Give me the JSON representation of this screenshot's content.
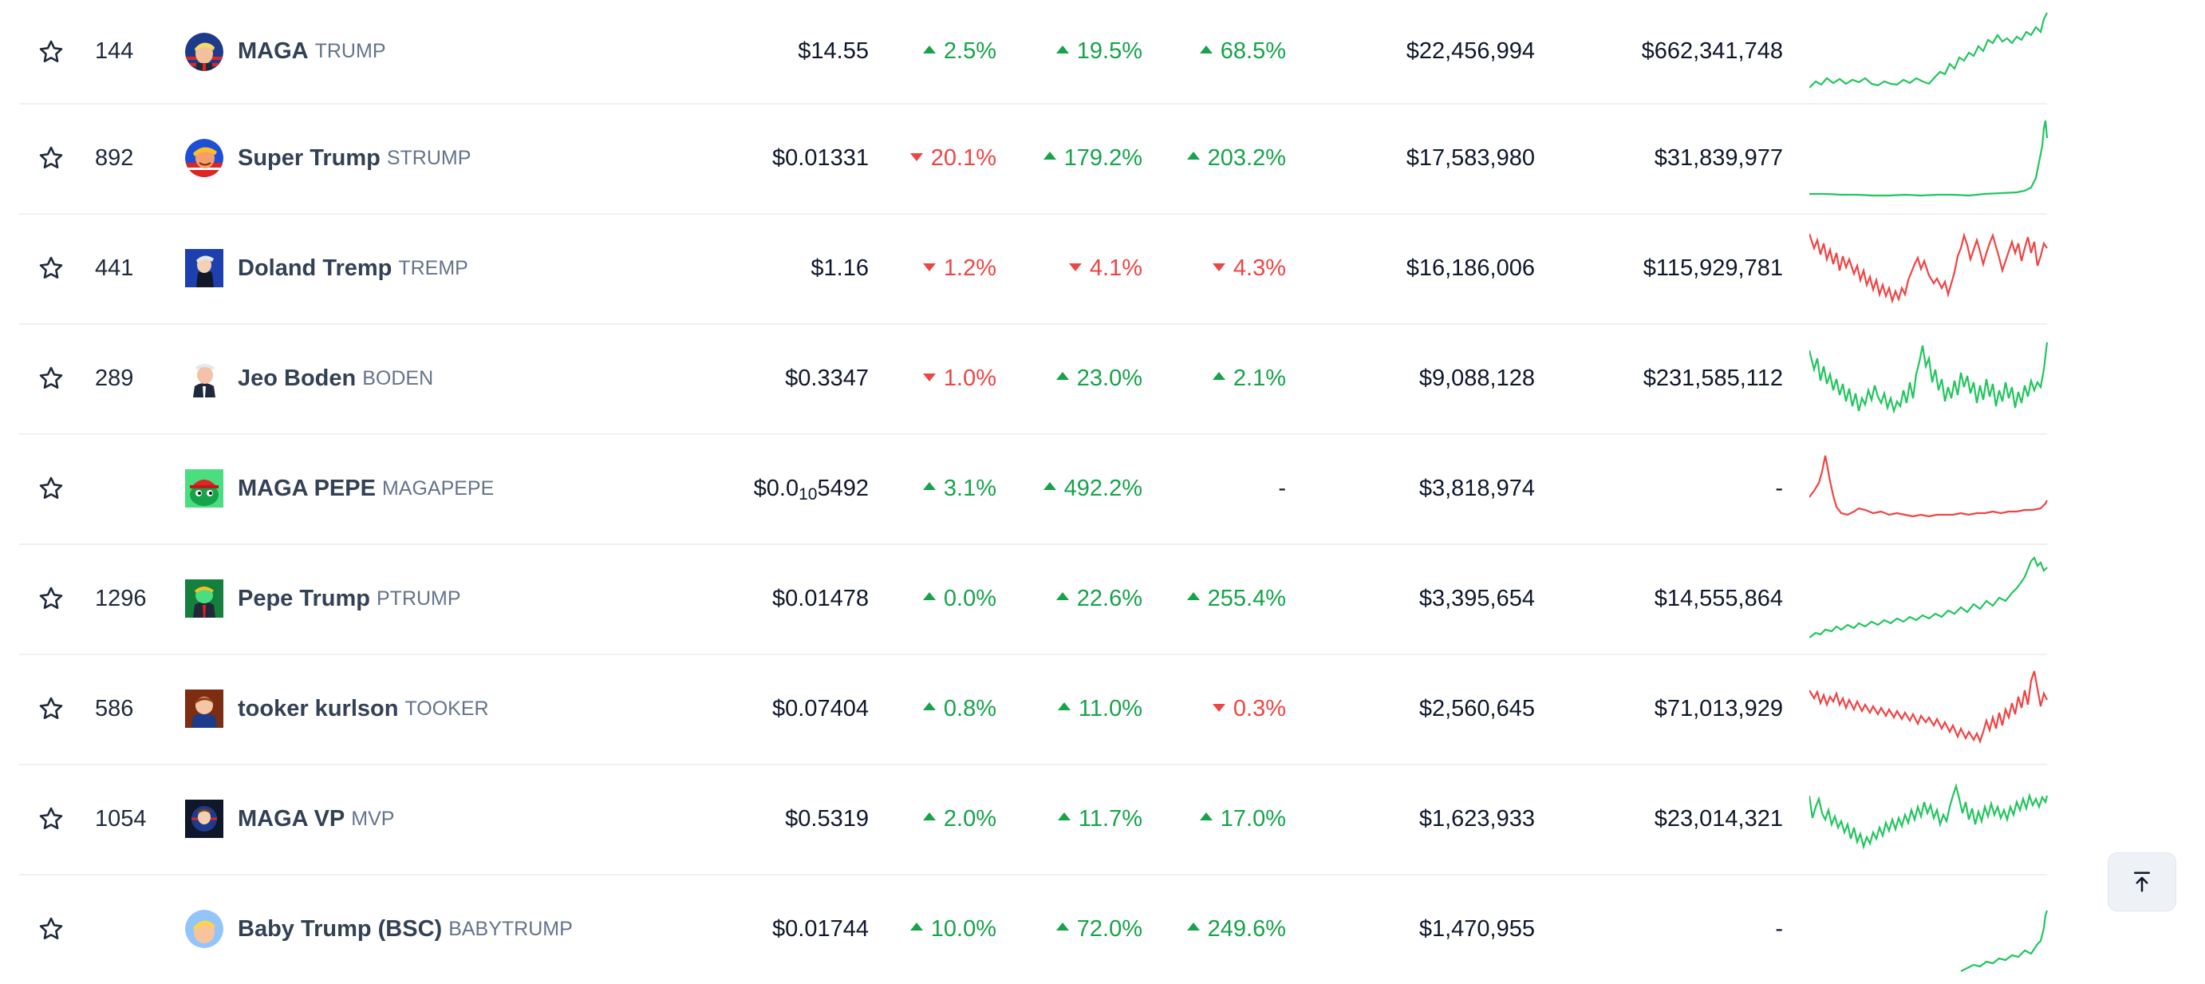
{
  "colors": {
    "up": "#16a34a",
    "down": "#ef4444"
  },
  "rows": [
    {
      "rank": "144",
      "name": "MAGA",
      "symbol": "TRUMP",
      "price": "$14.55",
      "h1": "2.5%",
      "h1_dir": "up",
      "h24": "19.5%",
      "h24_dir": "up",
      "d7": "68.5%",
      "d7_dir": "up",
      "volume": "$22,456,994",
      "market_cap": "$662,341,748",
      "trend": "up",
      "icon": "trump-flag-avatar-icon"
    },
    {
      "rank": "892",
      "name": "Super Trump",
      "symbol": "STRUMP",
      "price": "$0.01331",
      "h1": "20.1%",
      "h1_dir": "down",
      "h24": "179.2%",
      "h24_dir": "up",
      "d7": "203.2%",
      "d7_dir": "up",
      "volume": "$17,583,980",
      "market_cap": "$31,839,977",
      "trend": "up",
      "icon": "super-trump-avatar-icon"
    },
    {
      "rank": "441",
      "name": "Doland Tremp",
      "symbol": "TREMP",
      "price": "$1.16",
      "h1": "1.2%",
      "h1_dir": "down",
      "h24": "4.1%",
      "h24_dir": "down",
      "d7": "4.3%",
      "d7_dir": "down",
      "volume": "$16,186,006",
      "market_cap": "$115,929,781",
      "trend": "down",
      "icon": "doland-tremp-avatar-icon"
    },
    {
      "rank": "289",
      "name": "Jeo Boden",
      "symbol": "BODEN",
      "price": "$0.3347",
      "h1": "1.0%",
      "h1_dir": "down",
      "h24": "23.0%",
      "h24_dir": "up",
      "d7": "2.1%",
      "d7_dir": "up",
      "volume": "$9,088,128",
      "market_cap": "$231,585,112",
      "trend": "up",
      "icon": "jeo-boden-avatar-icon"
    },
    {
      "rank": "",
      "name": "MAGA PEPE",
      "symbol": "MAGAPEPE",
      "price_prefix": "$0.0",
      "price_sub": "10",
      "price_suffix": "5492",
      "h1": "3.1%",
      "h1_dir": "up",
      "h24": "492.2%",
      "h24_dir": "up",
      "d7": "-",
      "d7_dir": "none",
      "volume": "$3,818,974",
      "market_cap": "-",
      "trend": "down",
      "icon": "maga-pepe-avatar-icon"
    },
    {
      "rank": "1296",
      "name": "Pepe Trump",
      "symbol": "PTRUMP",
      "price": "$0.01478",
      "h1": "0.0%",
      "h1_dir": "up",
      "h24": "22.6%",
      "h24_dir": "up",
      "d7": "255.4%",
      "d7_dir": "up",
      "volume": "$3,395,654",
      "market_cap": "$14,555,864",
      "trend": "up",
      "icon": "pepe-trump-avatar-icon"
    },
    {
      "rank": "586",
      "name": "tooker kurlson",
      "symbol": "TOOKER",
      "price": "$0.07404",
      "h1": "0.8%",
      "h1_dir": "up",
      "h24": "11.0%",
      "h24_dir": "up",
      "d7": "0.3%",
      "d7_dir": "down",
      "volume": "$2,560,645",
      "market_cap": "$71,013,929",
      "trend": "down",
      "icon": "tooker-kurlson-avatar-icon"
    },
    {
      "rank": "1054",
      "name": "MAGA VP",
      "symbol": "MVP",
      "price": "$0.5319",
      "h1": "2.0%",
      "h1_dir": "up",
      "h24": "11.7%",
      "h24_dir": "up",
      "d7": "17.0%",
      "d7_dir": "up",
      "volume": "$1,623,933",
      "market_cap": "$23,014,321",
      "trend": "up",
      "icon": "maga-vp-avatar-icon"
    },
    {
      "rank": "",
      "name": "Baby Trump (BSC)",
      "symbol": "BABYTRUMP",
      "price": "$0.01744",
      "h1": "10.0%",
      "h1_dir": "up",
      "h24": "72.0%",
      "h24_dir": "up",
      "d7": "249.6%",
      "d7_dir": "up",
      "volume": "$1,470,955",
      "market_cap": "-",
      "trend": "up",
      "icon": "baby-trump-avatar-icon"
    }
  ],
  "scroll_to_top": {
    "icon": "arrow-up-to-line-icon"
  }
}
